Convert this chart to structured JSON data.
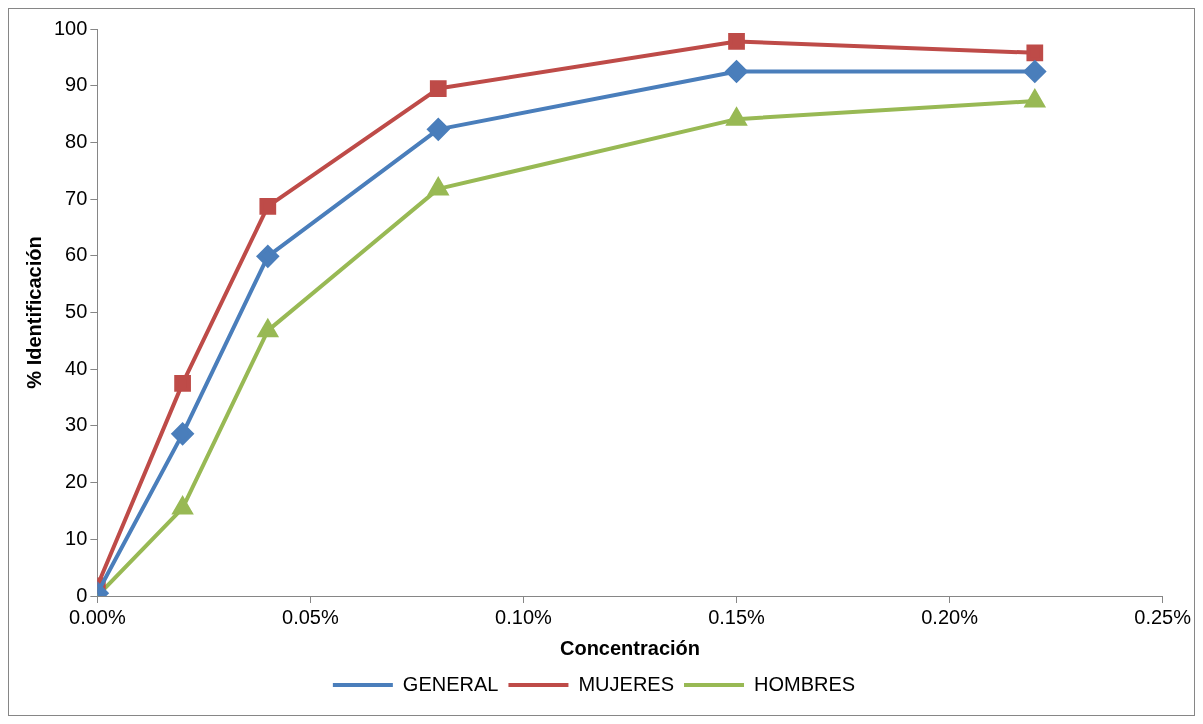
{
  "chart_data": {
    "type": "line",
    "xlabel": "Concentración",
    "ylabel": "% Identificación",
    "xlim": [
      0,
      0.25
    ],
    "xticks": [
      {
        "value": 0,
        "label": "0.00%"
      },
      {
        "value": 0.05,
        "label": "0.05%"
      },
      {
        "value": 0.1,
        "label": "0.10%"
      },
      {
        "value": 0.15,
        "label": "0.15%"
      },
      {
        "value": 0.2,
        "label": "0.20%"
      },
      {
        "value": 0.25,
        "label": "0.25%"
      }
    ],
    "ylim": [
      0,
      100
    ],
    "yticks": [
      0,
      10,
      20,
      30,
      40,
      50,
      60,
      70,
      80,
      90,
      100
    ],
    "x": [
      0,
      0.02,
      0.04,
      0.08,
      0.15,
      0.22
    ],
    "series": [
      {
        "name": "GENERAL",
        "color": "#4a7ebb",
        "marker": "diamond",
        "values": [
          0.5,
          28.6,
          59.9,
          82.3,
          92.5,
          92.5
        ]
      },
      {
        "name": "MUJERES",
        "color": "#be4b48",
        "marker": "square",
        "values": [
          1.8,
          37.5,
          68.7,
          89.5,
          97.8,
          95.8
        ]
      },
      {
        "name": "HOMBRES",
        "color": "#98b954",
        "marker": "triangle",
        "values": [
          0,
          15.5,
          46.8,
          71.8,
          84.1,
          87.3
        ]
      }
    ],
    "grid": false,
    "legend": "bottom",
    "line_style": "solid"
  }
}
